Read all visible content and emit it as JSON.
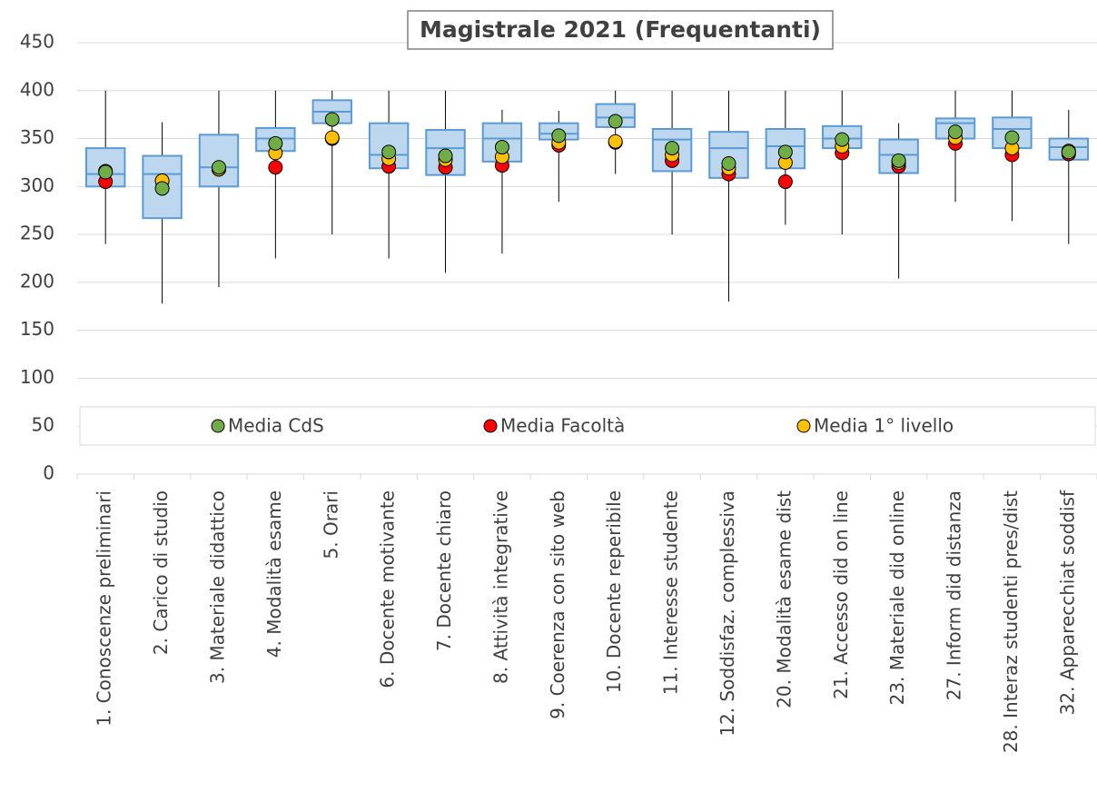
{
  "chart_data": {
    "type": "box",
    "title": "Magistrale 2021 (Frequentanti)",
    "categories": [
      "1. Conoscenze preliminari",
      "2. Carico di studio",
      "3. Materiale didattico",
      "4. Modalità esame",
      "5. Orari",
      "6. Docente motivante",
      "7. Docente chiaro",
      "8. Attività integrative",
      "9. Coerenza con sito web",
      "10. Docente reperibile",
      "11. Interesse studente",
      "12. Soddisfaz. complessiva",
      "20. Modalità esame dist",
      "21. Accesso did on line",
      "23. Materiale did online",
      "27. Inform did distanza",
      "28. Interaz studenti pres/dist",
      "32. Apparecchiat soddisf"
    ],
    "box": {
      "color": "#bdd7ee",
      "edge": "#5b9bd5",
      "low": [
        240,
        178,
        195,
        225,
        250,
        225,
        210,
        230,
        284,
        313,
        250,
        180,
        260,
        250,
        204,
        284,
        264,
        240
      ],
      "q1": [
        300,
        267,
        300,
        337,
        366,
        319,
        312,
        326,
        349,
        362,
        316,
        309,
        319,
        340,
        314,
        350,
        340,
        328
      ],
      "median": [
        313,
        313,
        320,
        350,
        378,
        333,
        340,
        350,
        355,
        372,
        349,
        340,
        342,
        350,
        333,
        366,
        360,
        341
      ],
      "q3": [
        340,
        332,
        354,
        361,
        390,
        366,
        359,
        366,
        366,
        386,
        360,
        357,
        360,
        363,
        349,
        371,
        372,
        350
      ],
      "high": [
        400,
        367,
        400,
        400,
        400,
        400,
        400,
        380,
        379,
        400,
        400,
        400,
        400,
        400,
        366,
        400,
        400,
        380
      ]
    },
    "series": [
      {
        "name": "Media CdS",
        "color": "#70ad47",
        "values": [
          315,
          298,
          320,
          345,
          370,
          336,
          332,
          341,
          353,
          368,
          340,
          324,
          336,
          349,
          327,
          357,
          351,
          336
        ]
      },
      {
        "name": "Media Facoltà",
        "color": "#ff0000",
        "values": [
          305,
          306,
          318,
          320,
          350,
          321,
          320,
          322,
          343,
          346,
          327,
          313,
          305,
          335,
          321,
          345,
          333,
          334
        ]
      },
      {
        "name": "Media 1° livello",
        "color": "#ffc000",
        "values": [
          316,
          306,
          318,
          335,
          351,
          329,
          328,
          331,
          346,
          347,
          333,
          319,
          325,
          342,
          325,
          351,
          340,
          337
        ]
      }
    ],
    "ylim": [
      0,
      450
    ],
    "yticks": [
      0,
      50,
      100,
      150,
      200,
      250,
      300,
      350,
      400,
      450
    ],
    "grid": true
  }
}
